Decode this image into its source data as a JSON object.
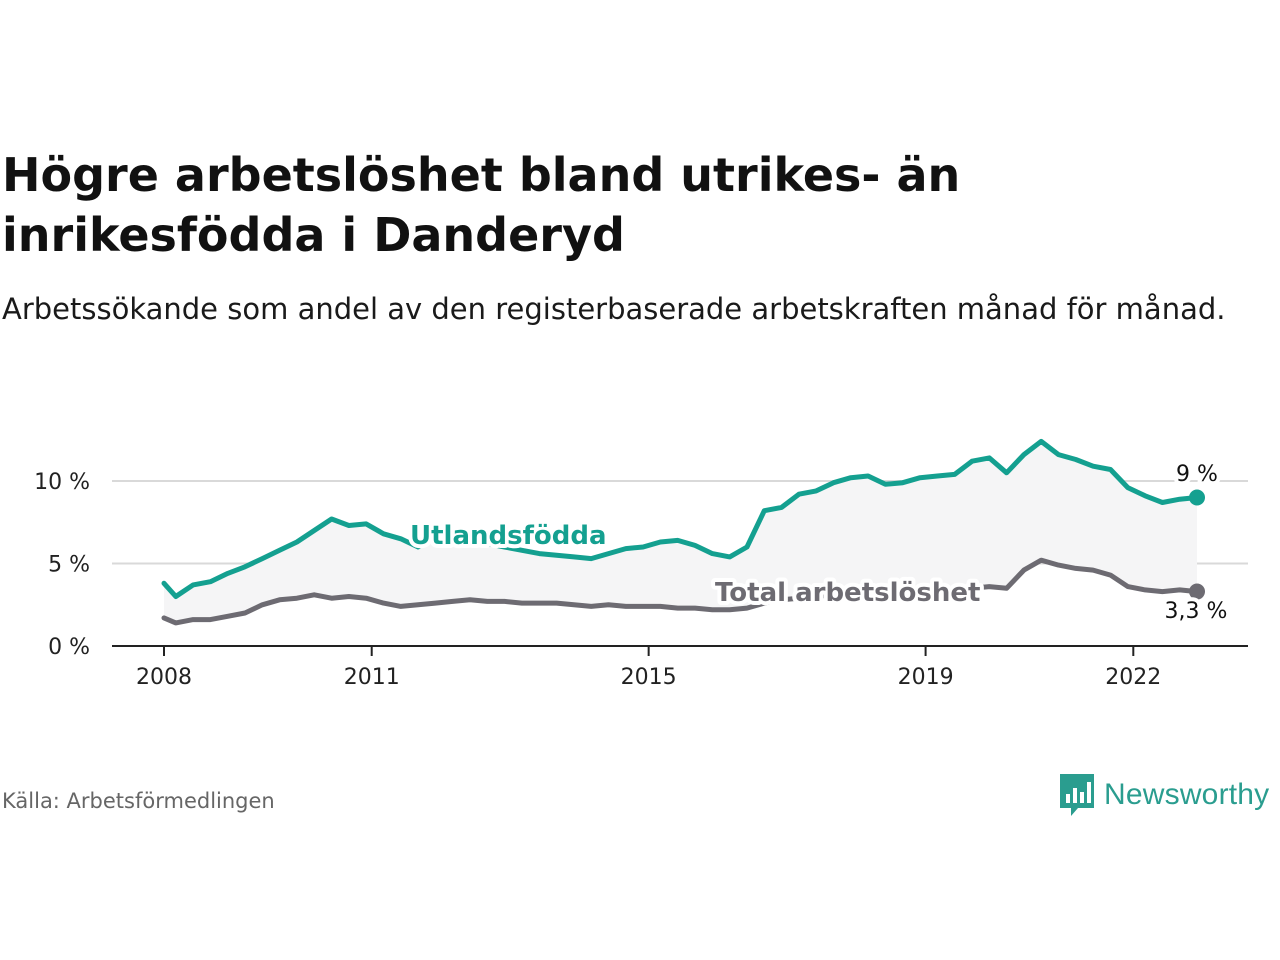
{
  "title": "Högre arbetslöshet bland utrikes- än inrikesfödda i Danderyd",
  "subtitle": "Arbetssökande som andel av den registerbaserade arbetskraften månad för månad.",
  "source": "Källa: Arbetsförmedlingen",
  "logo_text": "Newsworthy",
  "colors": {
    "accent": "#14a090",
    "total": "#6d6b72",
    "band": "#f5f5f6",
    "grid": "#d9d9d9",
    "text": "#111111",
    "logo": "#2a9d8f"
  },
  "chart_data": {
    "type": "line",
    "title": "Högre arbetslöshet bland utrikes- än inrikesfödda i Danderyd",
    "xlabel": "",
    "ylabel": "",
    "x_range": [
      2007.9,
      2022.92
    ],
    "ylim": [
      0,
      13
    ],
    "y_ticks": [
      {
        "value": 0,
        "label": "0 %"
      },
      {
        "value": 5,
        "label": "5 %"
      },
      {
        "value": 10,
        "label": "10 %"
      }
    ],
    "x_ticks": [
      {
        "value": 2008,
        "label": "2008"
      },
      {
        "value": 2011,
        "label": "2011"
      },
      {
        "value": 2015,
        "label": "2015"
      },
      {
        "value": 2019,
        "label": "2019"
      },
      {
        "value": 2022,
        "label": "2022"
      }
    ],
    "series": [
      {
        "name": "Utlandsfödda",
        "color": "#14a090",
        "end_label": "9 %",
        "x": [
          2008.0,
          2008.17,
          2008.42,
          2008.67,
          2008.92,
          2009.17,
          2009.42,
          2009.67,
          2009.92,
          2010.17,
          2010.42,
          2010.67,
          2010.92,
          2011.17,
          2011.42,
          2011.67,
          2011.92,
          2012.17,
          2012.42,
          2012.67,
          2012.92,
          2013.17,
          2013.42,
          2013.67,
          2013.92,
          2014.17,
          2014.42,
          2014.67,
          2014.92,
          2015.17,
          2015.42,
          2015.67,
          2015.92,
          2016.17,
          2016.42,
          2016.67,
          2016.92,
          2017.17,
          2017.42,
          2017.67,
          2017.92,
          2018.17,
          2018.42,
          2018.67,
          2018.92,
          2019.17,
          2019.42,
          2019.67,
          2019.92,
          2020.17,
          2020.42,
          2020.67,
          2020.92,
          2021.17,
          2021.42,
          2021.67,
          2021.92,
          2022.17,
          2022.42,
          2022.67,
          2022.92
        ],
        "values": [
          3.8,
          3.0,
          3.7,
          3.9,
          4.4,
          4.8,
          5.3,
          5.8,
          6.3,
          7.0,
          7.7,
          7.3,
          7.4,
          6.8,
          6.5,
          6.0,
          6.6,
          6.6,
          6.5,
          6.2,
          6.0,
          5.8,
          5.6,
          5.5,
          5.4,
          5.3,
          5.6,
          5.9,
          6.0,
          6.3,
          6.4,
          6.1,
          5.6,
          5.4,
          6.0,
          8.2,
          8.4,
          9.2,
          9.4,
          9.9,
          10.2,
          10.3,
          9.8,
          9.9,
          10.2,
          10.3,
          10.4,
          11.2,
          11.4,
          10.5,
          11.6,
          12.4,
          11.6,
          11.3,
          10.9,
          10.7,
          9.6,
          9.1,
          8.7,
          8.9,
          9.0
        ]
      },
      {
        "name": "Total arbetslöshet",
        "color": "#6d6b72",
        "end_label": "3,3 %",
        "x": [
          2008.0,
          2008.17,
          2008.42,
          2008.67,
          2008.92,
          2009.17,
          2009.42,
          2009.67,
          2009.92,
          2010.17,
          2010.42,
          2010.67,
          2010.92,
          2011.17,
          2011.42,
          2011.67,
          2011.92,
          2012.17,
          2012.42,
          2012.67,
          2012.92,
          2013.17,
          2013.42,
          2013.67,
          2013.92,
          2014.17,
          2014.42,
          2014.67,
          2014.92,
          2015.17,
          2015.42,
          2015.67,
          2015.92,
          2016.17,
          2016.42,
          2016.67,
          2016.92,
          2017.17,
          2017.42,
          2017.67,
          2017.92,
          2018.17,
          2018.42,
          2018.67,
          2018.92,
          2019.17,
          2019.42,
          2019.67,
          2019.92,
          2020.17,
          2020.42,
          2020.67,
          2020.92,
          2021.17,
          2021.42,
          2021.67,
          2021.92,
          2022.17,
          2022.42,
          2022.67,
          2022.92
        ],
        "values": [
          1.7,
          1.4,
          1.6,
          1.6,
          1.8,
          2.0,
          2.5,
          2.8,
          2.9,
          3.1,
          2.9,
          3.0,
          2.9,
          2.6,
          2.4,
          2.5,
          2.6,
          2.7,
          2.8,
          2.7,
          2.7,
          2.6,
          2.6,
          2.6,
          2.5,
          2.4,
          2.5,
          2.4,
          2.4,
          2.4,
          2.3,
          2.3,
          2.2,
          2.2,
          2.3,
          2.6,
          2.8,
          2.9,
          3.0,
          3.1,
          3.2,
          3.2,
          3.3,
          3.3,
          3.4,
          3.4,
          3.5,
          3.5,
          3.6,
          3.5,
          4.6,
          5.2,
          4.9,
          4.7,
          4.6,
          4.3,
          3.6,
          3.4,
          3.3,
          3.4,
          3.3
        ]
      }
    ],
    "annotations": [
      {
        "text": "Utlandsfödda",
        "series": "Utlandsfödda"
      },
      {
        "text": "Total arbetslöshet",
        "series": "Total arbetslöshet"
      }
    ]
  }
}
